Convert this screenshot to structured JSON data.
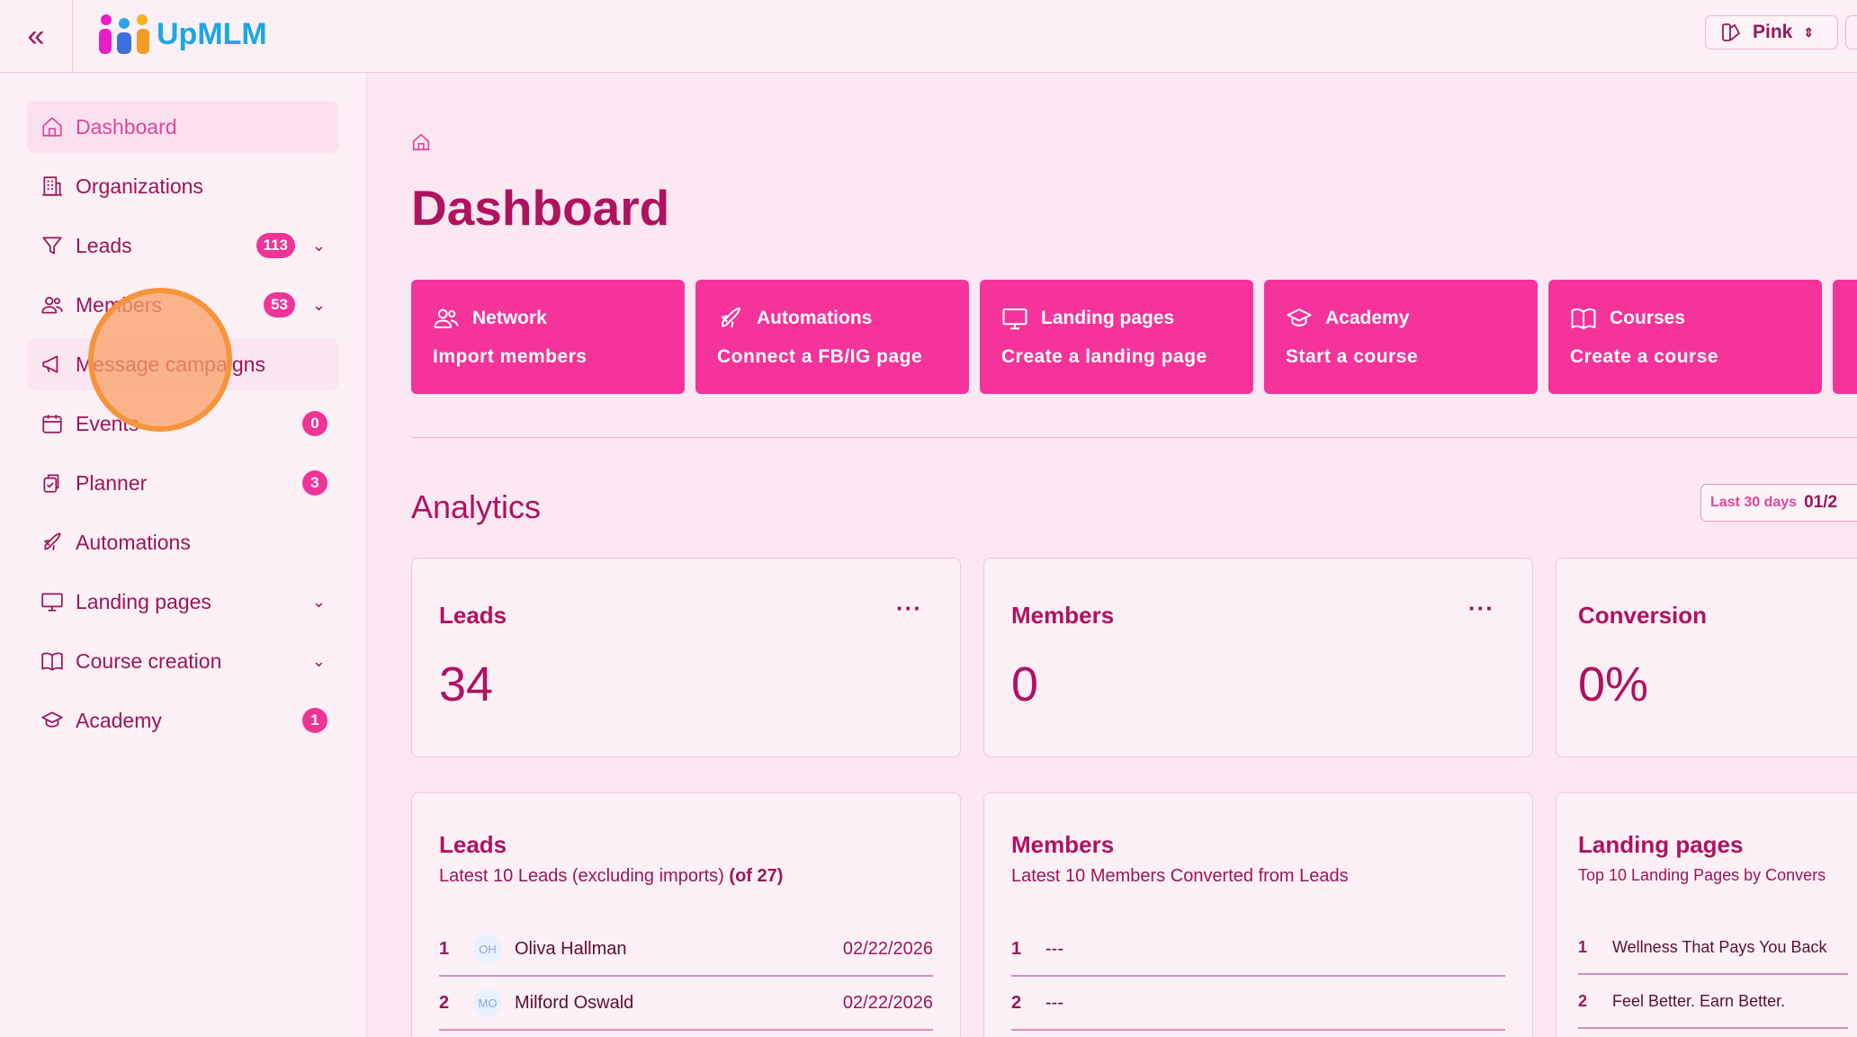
{
  "header": {
    "brand": "UpMLM",
    "theme_label": "Pink",
    "collapse_icon": "chevrons-left-icon"
  },
  "sidebar": {
    "items": [
      {
        "label": "Dashboard",
        "icon": "home-icon",
        "active": true
      },
      {
        "label": "Organizations",
        "icon": "building-icon"
      },
      {
        "label": "Leads",
        "icon": "funnel-icon",
        "badge": "113",
        "chevron": true
      },
      {
        "label": "Members",
        "icon": "users-icon",
        "badge": "53",
        "chevron": true
      },
      {
        "label": "Message campaigns",
        "icon": "megaphone-icon"
      },
      {
        "label": "Events",
        "icon": "calendar-icon",
        "badge": "0"
      },
      {
        "label": "Planner",
        "icon": "clipboard-icon",
        "badge": "3"
      },
      {
        "label": "Automations",
        "icon": "rocket-icon"
      },
      {
        "label": "Landing pages",
        "icon": "monitor-icon",
        "chevron": true
      },
      {
        "label": "Course creation",
        "icon": "book-icon",
        "chevron": true
      },
      {
        "label": "Academy",
        "icon": "graduation-cap-icon",
        "badge": "1"
      }
    ]
  },
  "main": {
    "title": "Dashboard",
    "actions": [
      {
        "title": "Network",
        "subtitle": "Import members",
        "icon": "users-icon"
      },
      {
        "title": "Automations",
        "subtitle": "Connect a FB/IG page",
        "icon": "rocket-icon"
      },
      {
        "title": "Landing pages",
        "subtitle": "Create a landing page",
        "icon": "monitor-icon"
      },
      {
        "title": "Academy",
        "subtitle": "Start a course",
        "icon": "graduation-cap-icon"
      },
      {
        "title": "Courses",
        "subtitle": "Create a course",
        "icon": "book-icon"
      }
    ],
    "analytics_title": "Analytics",
    "range": {
      "label": "Last 30 days",
      "value": "01/2"
    },
    "stats": [
      {
        "title": "Leads",
        "value": "34",
        "menu": "···"
      },
      {
        "title": "Members",
        "value": "0",
        "menu": "···"
      },
      {
        "title": "Conversion",
        "value": "0%"
      }
    ],
    "lists": [
      {
        "title": "Leads",
        "subtitle": "Latest 10 Leads (excluding imports)",
        "subtitle_bold": "(of 27)",
        "rows": [
          {
            "index": "1",
            "initials": "OH",
            "name": "Oliva Hallman",
            "date": "02/22/2026"
          },
          {
            "index": "2",
            "initials": "MO",
            "name": "Milford Oswald",
            "date": "02/22/2026"
          }
        ]
      },
      {
        "title": "Members",
        "subtitle": "Latest 10 Members Converted from Leads",
        "rows": [
          {
            "index": "1",
            "name": "---"
          },
          {
            "index": "2",
            "name": "---"
          }
        ]
      },
      {
        "title": "Landing pages",
        "subtitle": "Top 10 Landing Pages by Convers",
        "rows": [
          {
            "index": "1",
            "name": "Wellness That Pays You Back"
          },
          {
            "index": "2",
            "name": "Feel Better. Earn Better."
          }
        ]
      }
    ]
  },
  "colors": {
    "primary": "#f5339a",
    "text": "#9c1558",
    "heading": "#b0125f",
    "background": "#fce8f3"
  }
}
